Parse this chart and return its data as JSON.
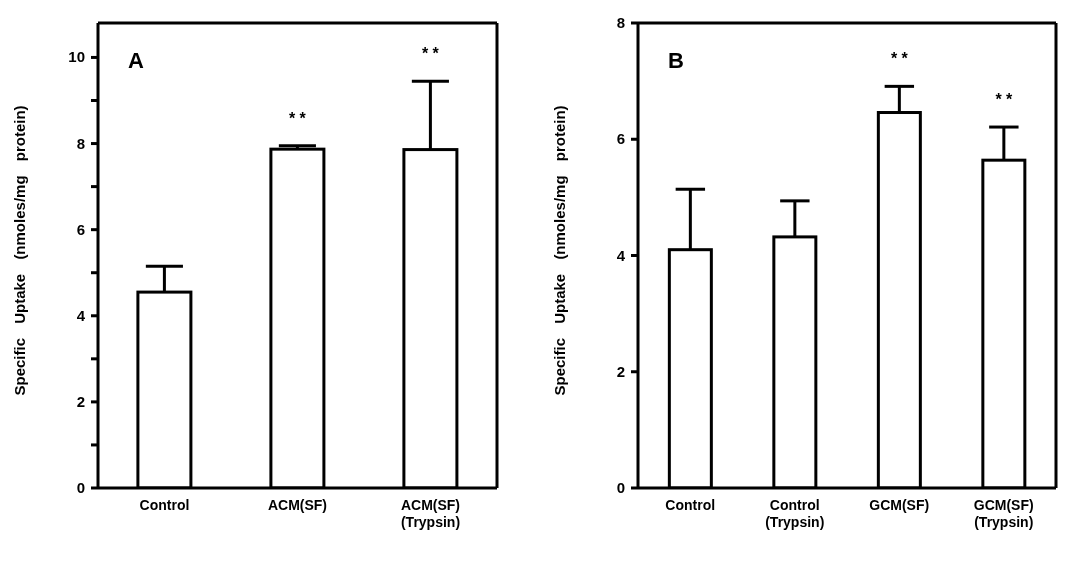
{
  "chart_data": [
    {
      "type": "bar",
      "categories": [
        "Control",
        "ACM(SF)",
        "ACM(SF)\n(Trypsin)"
      ],
      "values": [
        4.55,
        7.87,
        7.86
      ],
      "color": "#ffffff",
      "errors": [
        [
          4.55,
          5.15
        ],
        [
          7.87,
          7.95
        ],
        [
          7.86,
          9.45
        ]
      ],
      "ylabel": "Specific Uptake (nmoles/mg protein)",
      "ylim": [
        0,
        10.8
      ],
      "yticks": [
        0,
        {
          "value": 1,
          "label": null
        },
        2,
        {
          "value": 3,
          "label": null
        },
        4,
        {
          "value": 5,
          "label": null
        },
        6,
        {
          "value": 7,
          "label": null
        },
        8,
        {
          "value": 9,
          "label": null
        },
        10
      ],
      "annotations": [
        "A",
        {
          "text": "* *",
          "x": "ACM(SF)",
          "y": 7.95
        },
        {
          "text": "* *",
          "x": "ACM(SF)\n(Trypsin)",
          "y": 9.45
        }
      ],
      "grid": false,
      "legend": false
    },
    {
      "type": "bar",
      "categories": [
        "Control",
        "Control\n(Trypsin)",
        "GCM(SF)",
        "GCM(SF)\n(Trypsin)"
      ],
      "values": [
        4.1,
        4.32,
        6.46,
        5.64
      ],
      "color": "#ffffff",
      "errors": [
        [
          4.1,
          5.14
        ],
        [
          4.32,
          4.94
        ],
        [
          6.46,
          6.91
        ],
        [
          5.64,
          6.21
        ]
      ],
      "ylabel": "Specific Uptake (nmoles/mg protein)",
      "ylim": [
        0,
        8
      ],
      "yticks": [
        0,
        2,
        4,
        6,
        8
      ],
      "annotations": [
        "B",
        {
          "text": "* *",
          "x": "GCM(SF)",
          "y": 6.91
        },
        {
          "text": "* *",
          "x": "GCM(SF)\n(Trypsin)",
          "y": 6.21
        }
      ],
      "grid": false,
      "legend": false
    }
  ]
}
